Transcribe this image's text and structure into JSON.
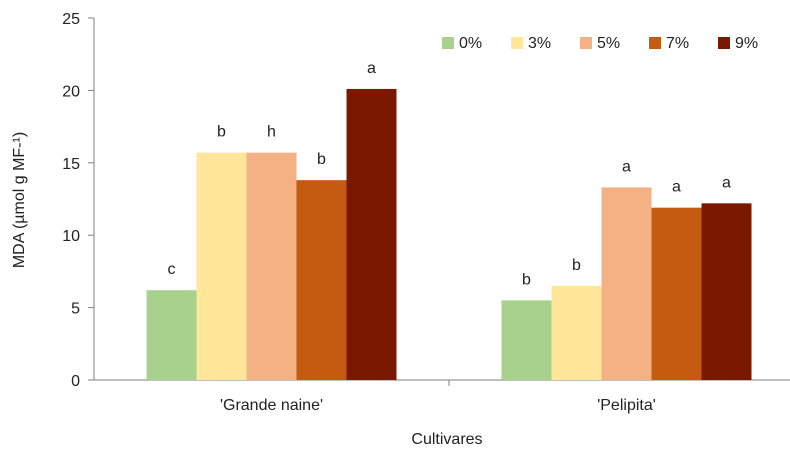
{
  "chart_data": {
    "type": "bar",
    "title": "",
    "xlabel": "Cultivares",
    "ylabel": "MDA (µmol  g MF-¹)",
    "ylim": [
      0,
      25
    ],
    "yticks": [
      0,
      5,
      10,
      15,
      20,
      25
    ],
    "grid": false,
    "legend_position": "top-right",
    "categories": [
      "'Grande naine'",
      "'Pelipita'"
    ],
    "series": [
      {
        "name": "0%",
        "color": "#a9d18e",
        "values": [
          6.2,
          5.5
        ],
        "labels": [
          "c",
          "b"
        ]
      },
      {
        "name": "3%",
        "color": "#ffe699",
        "values": [
          15.7,
          6.5
        ],
        "labels": [
          "b",
          "b"
        ]
      },
      {
        "name": "5%",
        "color": "#f4b183",
        "values": [
          15.7,
          13.3
        ],
        "labels": [
          "h",
          "a"
        ]
      },
      {
        "name": "7%",
        "color": "#c55a11",
        "values": [
          13.8,
          11.9
        ],
        "labels": [
          "b",
          "a"
        ]
      },
      {
        "name": "9%",
        "color": "#7b1900",
        "values": [
          20.1,
          12.2
        ],
        "labels": [
          "a",
          "a"
        ]
      }
    ]
  }
}
